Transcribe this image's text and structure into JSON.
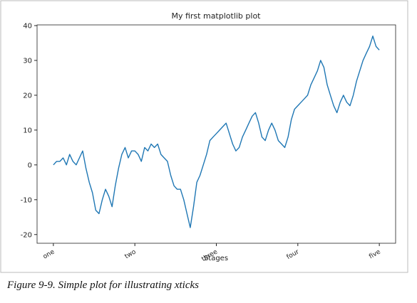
{
  "chart_data": {
    "type": "line",
    "title": "My first matplotlib plot",
    "xlabel": "Stages",
    "caption": "Figure 9-9. Simple plot for illustrating xticks",
    "color": "#1f77b4",
    "x": [
      0,
      10,
      20,
      30,
      40,
      50,
      60,
      70,
      80,
      90,
      100,
      110,
      120,
      130,
      140,
      150,
      160,
      170,
      180,
      190,
      200,
      210,
      220,
      230,
      240,
      250,
      260,
      270,
      280,
      290,
      300,
      310,
      320,
      330,
      340,
      350,
      360,
      370,
      380,
      390,
      400,
      410,
      420,
      430,
      440,
      450,
      460,
      470,
      480,
      490,
      500,
      510,
      520,
      530,
      540,
      550,
      560,
      570,
      580,
      590,
      600,
      610,
      620,
      630,
      640,
      650,
      660,
      670,
      680,
      690,
      700,
      710,
      720,
      730,
      740,
      750,
      760,
      770,
      780,
      790,
      800,
      810,
      820,
      830,
      840,
      850,
      860,
      870,
      880,
      890,
      900,
      910,
      920,
      930,
      940,
      950,
      960,
      970,
      980,
      990,
      1000
    ],
    "values": [
      0,
      1,
      1,
      2,
      0,
      3,
      1,
      0,
      2,
      4,
      -1,
      -5,
      -8,
      -13,
      -14,
      -10,
      -7,
      -9,
      -12,
      -6,
      -1,
      3,
      5,
      2,
      4,
      4,
      3,
      1,
      5,
      4,
      6,
      5,
      6,
      3,
      2,
      1,
      -3,
      -6,
      -7,
      -7,
      -10,
      -14,
      -18,
      -12,
      -5,
      -3,
      0,
      3,
      7,
      8,
      9,
      10,
      11,
      12,
      9,
      6,
      4,
      5,
      8,
      10,
      12,
      14,
      15,
      12,
      8,
      7,
      10,
      12,
      10,
      7,
      6,
      5,
      8,
      13,
      16,
      17,
      18,
      19,
      20,
      23,
      25,
      27,
      30,
      28,
      23,
      20,
      17,
      15,
      18,
      20,
      18,
      17,
      20,
      24,
      27,
      30,
      32,
      34,
      37,
      34,
      33
    ],
    "xlim": [
      -50,
      1050
    ],
    "xticks": [
      {
        "value": 0,
        "label": "one"
      },
      {
        "value": 250,
        "label": "two"
      },
      {
        "value": 500,
        "label": "three"
      },
      {
        "value": 750,
        "label": "four"
      },
      {
        "value": 1000,
        "label": "five"
      }
    ],
    "ylim": [
      -22.5,
      40.2
    ],
    "yticks": [
      -20,
      -10,
      0,
      10,
      20,
      30,
      40
    ]
  }
}
